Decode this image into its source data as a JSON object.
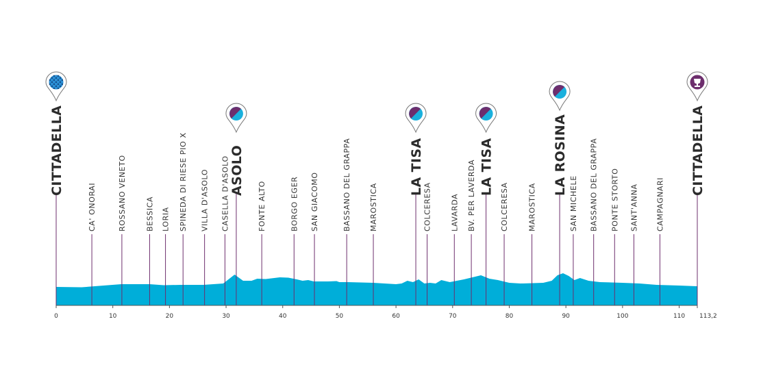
{
  "chart_data": {
    "type": "area",
    "xlim": [
      0,
      113.2
    ],
    "x_ticks": [
      0,
      10,
      20,
      30,
      40,
      50,
      60,
      70,
      80,
      90,
      100,
      110,
      113.2
    ],
    "x_tick_labels": [
      "0",
      "10",
      "20",
      "30",
      "40",
      "50",
      "60",
      "70",
      "80",
      "90",
      "100",
      "110",
      "113,2"
    ],
    "ylim": [
      0,
      100
    ],
    "colors": {
      "profile": "#00aed9",
      "marker_line": "#6d2e6d",
      "climb_purple": "#6d2e6d",
      "climb_blue": "#1ab0dd",
      "start_blue": "#2a8fd4"
    },
    "profile": [
      [
        0,
        27
      ],
      [
        4.5,
        26.5
      ],
      [
        11.5,
        31
      ],
      [
        16.5,
        31
      ],
      [
        19,
        29.5
      ],
      [
        22,
        30
      ],
      [
        26,
        30
      ],
      [
        29.5,
        32
      ],
      [
        31.5,
        45
      ],
      [
        33,
        36
      ],
      [
        34.5,
        36
      ],
      [
        35.5,
        39
      ],
      [
        37,
        38.5
      ],
      [
        39.5,
        41
      ],
      [
        41,
        40.5
      ],
      [
        42.5,
        38
      ],
      [
        43.5,
        36
      ],
      [
        44.5,
        37
      ],
      [
        45.5,
        35
      ],
      [
        48,
        35
      ],
      [
        49.5,
        35.5
      ],
      [
        50,
        34
      ],
      [
        51.5,
        34
      ],
      [
        56,
        33
      ],
      [
        60,
        31
      ],
      [
        61,
        32
      ],
      [
        62,
        36
      ],
      [
        63,
        34
      ],
      [
        64,
        38
      ],
      [
        65,
        32
      ],
      [
        66,
        33
      ],
      [
        67,
        32
      ],
      [
        68,
        37
      ],
      [
        69.5,
        34
      ],
      [
        72,
        38
      ],
      [
        74,
        42
      ],
      [
        75,
        44
      ],
      [
        76.5,
        39
      ],
      [
        78,
        37
      ],
      [
        80,
        33
      ],
      [
        82,
        32
      ],
      [
        86,
        33
      ],
      [
        87.5,
        36
      ],
      [
        88.5,
        44
      ],
      [
        89.5,
        47
      ],
      [
        90.5,
        43
      ],
      [
        91.5,
        37
      ],
      [
        92.5,
        40
      ],
      [
        94,
        36
      ],
      [
        96,
        34
      ],
      [
        100,
        33
      ],
      [
        103,
        32
      ],
      [
        106,
        30
      ],
      [
        110,
        29
      ],
      [
        113.2,
        28
      ]
    ],
    "places": [
      {
        "km": 0,
        "name": "CITTADELLA",
        "major": true,
        "icon": "checkered-flag-icon"
      },
      {
        "km": 6.3,
        "name": "CA' ONORAI",
        "major": false
      },
      {
        "km": 11.6,
        "name": "ROSSANO VENETO",
        "major": false
      },
      {
        "km": 16.5,
        "name": "BESSICA",
        "major": false
      },
      {
        "km": 19.3,
        "name": "LORIA",
        "major": false
      },
      {
        "km": 22.4,
        "name": "SPINEDA DI RIESE PIO X",
        "major": false
      },
      {
        "km": 26.2,
        "name": "VILLA D'ASOLO",
        "major": false
      },
      {
        "km": 29.8,
        "name": "CASELLA D'ASOLO",
        "major": false
      },
      {
        "km": 31.8,
        "name": "ASOLO",
        "major": true,
        "icon": "climb-icon"
      },
      {
        "km": 36.3,
        "name": "FONTE ALTO",
        "major": false
      },
      {
        "km": 42.0,
        "name": "BORGO EGER",
        "major": false
      },
      {
        "km": 45.6,
        "name": "SAN GIACOMO",
        "major": false
      },
      {
        "km": 51.3,
        "name": "BASSANO DEL GRAPPA",
        "major": false
      },
      {
        "km": 56.0,
        "name": "MAROSTICA",
        "major": false
      },
      {
        "km": 63.5,
        "name": "LA TISA",
        "major": true,
        "icon": "climb-icon"
      },
      {
        "km": 65.5,
        "name": "COLCERESA",
        "major": false
      },
      {
        "km": 70.3,
        "name": "LAVARDA",
        "major": false
      },
      {
        "km": 73.3,
        "name": "BV. PER LAVERDA",
        "major": false
      },
      {
        "km": 75.9,
        "name": "LA TISA",
        "major": true,
        "icon": "climb-icon"
      },
      {
        "km": 79.1,
        "name": "COLCERESA",
        "major": false
      },
      {
        "km": 84.0,
        "name": "MAROSTICA",
        "major": false
      },
      {
        "km": 88.9,
        "name": "LA ROSINA",
        "major": true,
        "icon": "climb-icon"
      },
      {
        "km": 91.3,
        "name": "SAN MICHELE",
        "major": false
      },
      {
        "km": 94.9,
        "name": "BASSANO DEL GRAPPA",
        "major": false
      },
      {
        "km": 98.6,
        "name": "PONTE STORTO",
        "major": false
      },
      {
        "km": 102.0,
        "name": "SANT'ANNA",
        "major": false
      },
      {
        "km": 106.6,
        "name": "CAMPAGNARI",
        "major": false
      },
      {
        "km": 113.2,
        "name": "CITTADELLA",
        "major": true,
        "icon": "trophy-icon"
      }
    ]
  }
}
